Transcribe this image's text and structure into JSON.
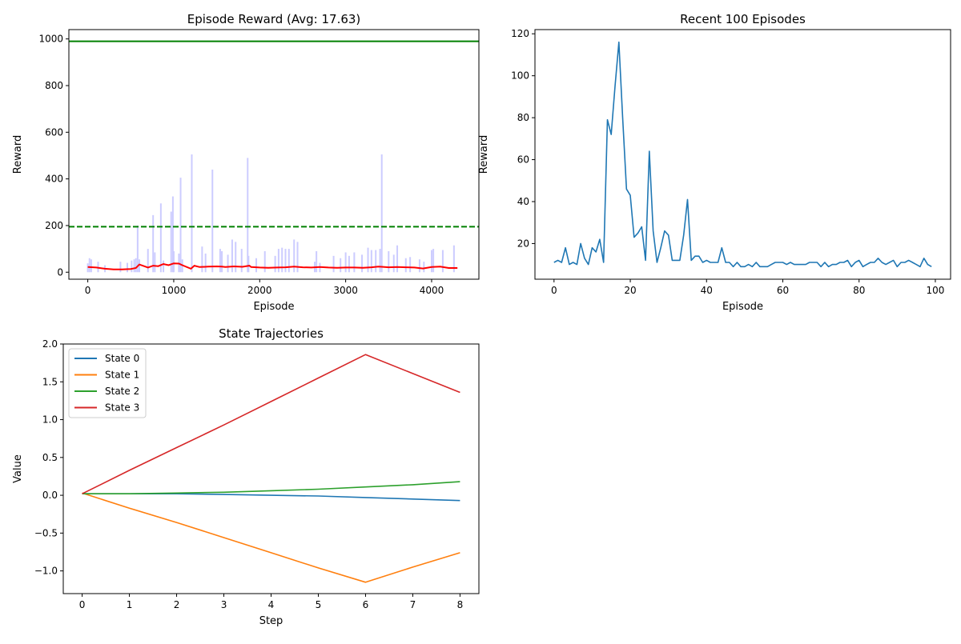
{
  "chart_data": [
    {
      "id": "episode_reward",
      "type": "line",
      "title": "Episode Reward (Avg: 17.63)",
      "xlabel": "Episode",
      "ylabel": "Reward",
      "xlim": [
        -220,
        4550
      ],
      "ylim": [
        -30,
        1040
      ],
      "xticks": [
        0,
        1000,
        2000,
        3000,
        4000
      ],
      "yticks": [
        0,
        200,
        400,
        600,
        800,
        1000
      ],
      "grid": false,
      "spikes": {
        "x": [
          0,
          20,
          40,
          120,
          200,
          380,
          460,
          510,
          540,
          560,
          580,
          600,
          700,
          760,
          780,
          850,
          880,
          970,
          990,
          1000,
          1060,
          1080,
          1100,
          1210,
          1330,
          1370,
          1450,
          1540,
          1560,
          1630,
          1680,
          1720,
          1790,
          1860,
          1870,
          1960,
          2060,
          2180,
          2220,
          2260,
          2300,
          2340,
          2400,
          2440,
          2640,
          2660,
          2700,
          2860,
          2940,
          3000,
          3040,
          3100,
          3190,
          3260,
          3300,
          3350,
          3400,
          3420,
          3500,
          3560,
          3600,
          3700,
          3750,
          3860,
          3910,
          4000,
          4020,
          4130,
          4260
        ],
        "values": [
          38,
          60,
          55,
          45,
          30,
          45,
          40,
          50,
          55,
          60,
          200,
          55,
          100,
          245,
          85,
          295,
          50,
          260,
          325,
          90,
          80,
          405,
          55,
          505,
          110,
          80,
          440,
          100,
          90,
          75,
          140,
          130,
          100,
          490,
          70,
          60,
          90,
          70,
          100,
          105,
          100,
          100,
          140,
          130,
          45,
          90,
          40,
          70,
          60,
          85,
          70,
          85,
          75,
          105,
          95,
          95,
          100,
          505,
          90,
          75,
          115,
          60,
          65,
          55,
          45,
          95,
          100,
          95,
          115
        ],
        "color": "#ccccff"
      },
      "moving_average": {
        "x": [
          0,
          100,
          200,
          300,
          400,
          500,
          560,
          600,
          700,
          760,
          820,
          880,
          940,
          1000,
          1060,
          1100,
          1200,
          1240,
          1300,
          1400,
          1500,
          1560,
          1600,
          1700,
          1800,
          1880,
          1900,
          2000,
          2100,
          2200,
          2300,
          2400,
          2500,
          2600,
          2700,
          2800,
          2900,
          3000,
          3100,
          3200,
          3300,
          3380,
          3420,
          3500,
          3600,
          3700,
          3800,
          3900,
          4000,
          4100,
          4200,
          4300
        ],
        "values": [
          22,
          20,
          15,
          12,
          12,
          14,
          18,
          33,
          20,
          28,
          26,
          35,
          30,
          38,
          37,
          30,
          15,
          28,
          22,
          24,
          25,
          24,
          22,
          25,
          23,
          28,
          22,
          20,
          19,
          20,
          21,
          24,
          21,
          20,
          22,
          20,
          19,
          20,
          20,
          19,
          21,
          24,
          23,
          21,
          22,
          21,
          20,
          16,
          22,
          24,
          18,
          18
        ],
        "color": "#ff0000"
      },
      "reference_lines": [
        {
          "value": 990,
          "style": "solid",
          "color": "#008000"
        },
        {
          "value": 195,
          "style": "dashed",
          "color": "#008000"
        }
      ]
    },
    {
      "id": "recent_100",
      "type": "line",
      "title": "Recent 100 Episodes",
      "xlabel": "Episode",
      "ylabel": "Reward",
      "xlim": [
        -5,
        104
      ],
      "ylim": [
        3,
        122
      ],
      "xticks": [
        0,
        20,
        40,
        60,
        80,
        100
      ],
      "yticks": [
        20,
        40,
        60,
        80,
        100,
        120
      ],
      "grid": false,
      "series": [
        {
          "color": "#1f77b4",
          "values": [
            11,
            12,
            11,
            18,
            10,
            11,
            10,
            20,
            13,
            10,
            18,
            16,
            22,
            11,
            79,
            72,
            95,
            116,
            80,
            46,
            43,
            23,
            25,
            28,
            12,
            64,
            26,
            11,
            18,
            26,
            24,
            12,
            12,
            12,
            24,
            41,
            12,
            14,
            14,
            11,
            12,
            11,
            11,
            11,
            18,
            11,
            11,
            9,
            11,
            9,
            9,
            10,
            9,
            11,
            9,
            9,
            9,
            10,
            11,
            11,
            11,
            10,
            11,
            10,
            10,
            10,
            10,
            11,
            11,
            11,
            9,
            11,
            9,
            10,
            10,
            11,
            11,
            12,
            9,
            11,
            12,
            9,
            10,
            11,
            11,
            13,
            11,
            10,
            11,
            12,
            9,
            11,
            11,
            12,
            11,
            10,
            9,
            13,
            10,
            9
          ]
        }
      ]
    },
    {
      "id": "state_trajectories",
      "type": "line",
      "title": "State Trajectories",
      "xlabel": "Step",
      "ylabel": "Value",
      "xlim": [
        -0.4,
        8.4
      ],
      "ylim": [
        -1.3,
        2.0
      ],
      "xticks": [
        0,
        1,
        2,
        3,
        4,
        5,
        6,
        7,
        8
      ],
      "yticks": [
        -1.0,
        -0.5,
        0.0,
        0.5,
        1.0,
        1.5,
        2.0
      ],
      "ytick_labels": [
        "−1.0",
        "−0.5",
        "0.0",
        "0.5",
        "1.0",
        "1.5",
        "2.0"
      ],
      "grid": false,
      "legend_position": "upper-left",
      "x": [
        0,
        1,
        2,
        3,
        4,
        5,
        6,
        7,
        8
      ],
      "series": [
        {
          "name": "State 0",
          "color": "#1f77b4",
          "values": [
            0.02,
            0.02,
            0.02,
            0.01,
            0.0,
            -0.01,
            -0.03,
            -0.05,
            -0.07
          ]
        },
        {
          "name": "State 1",
          "color": "#ff7f0e",
          "values": [
            0.03,
            -0.17,
            -0.36,
            -0.56,
            -0.76,
            -0.96,
            -1.15,
            -0.95,
            -0.76
          ]
        },
        {
          "name": "State 2",
          "color": "#2ca02c",
          "values": [
            0.02,
            0.02,
            0.03,
            0.04,
            0.06,
            0.08,
            0.11,
            0.14,
            0.18
          ]
        },
        {
          "name": "State 3",
          "color": "#d62728",
          "values": [
            0.02,
            0.33,
            0.63,
            0.93,
            1.24,
            1.55,
            1.86,
            1.61,
            1.36
          ]
        }
      ]
    }
  ]
}
